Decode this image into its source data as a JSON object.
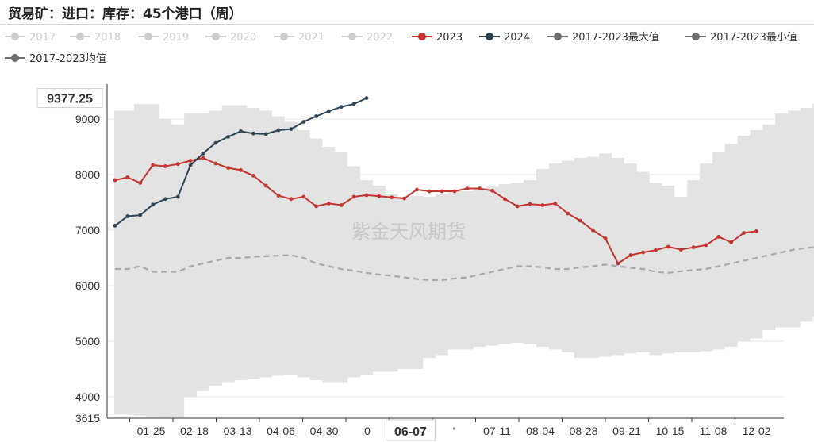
{
  "title": "贸易矿：进口：库存：45个港口（周）",
  "watermark": "紫金天风期货",
  "chart_data": {
    "type": "line",
    "title": "贸易矿：进口：库存：45个港口（周）",
    "xlabel": "",
    "ylabel": "",
    "ylim": [
      3615,
      9600
    ],
    "y_ticks": [
      3615,
      4000,
      5000,
      6000,
      7000,
      8000,
      9000
    ],
    "x_ticks": [
      "01-25",
      "02-18",
      "03-13",
      "04-06",
      "04-30",
      "0",
      "06-07",
      "'",
      "07-11",
      "08-04",
      "08-28",
      "09-21",
      "10-15",
      "11-08",
      "12-02"
    ],
    "axis_pointer": {
      "y_label": "9377.25",
      "x_label": "06-07"
    },
    "grid": "horizontal",
    "legend_position": "top",
    "legend": [
      {
        "name": "2017",
        "color": "#cccccc",
        "active": false
      },
      {
        "name": "2018",
        "color": "#cccccc",
        "active": false
      },
      {
        "name": "2019",
        "color": "#cccccc",
        "active": false
      },
      {
        "name": "2020",
        "color": "#cccccc",
        "active": false
      },
      {
        "name": "2021",
        "color": "#cccccc",
        "active": false
      },
      {
        "name": "2022",
        "color": "#cccccc",
        "active": false
      },
      {
        "name": "2023",
        "color": "#c23531",
        "active": true
      },
      {
        "name": "2024",
        "color": "#2f4554",
        "active": true
      },
      {
        "name": "2017-2023最大值",
        "color": "#6e7074",
        "active": true
      },
      {
        "name": "2017-2023最小值",
        "color": "#6e7074",
        "active": true
      },
      {
        "name": "2017-2023均值",
        "color": "#6e7074",
        "active": true
      }
    ],
    "band": {
      "max": [
        9150,
        9150,
        9270,
        9270,
        9000,
        8900,
        9100,
        9100,
        9150,
        9250,
        9250,
        9200,
        9150,
        9050,
        8950,
        8800,
        8650,
        8500,
        8400,
        8150,
        7900,
        7800,
        7650,
        7600,
        7620,
        7600,
        7650,
        7700,
        7700,
        7750,
        7780,
        7830,
        7850,
        7900,
        8100,
        8200,
        8250,
        8300,
        8320,
        8380,
        8300,
        8200,
        8050,
        7850,
        7800,
        7600,
        7900,
        8200,
        8400,
        8550,
        8700,
        8800,
        8900,
        9100,
        9150,
        9200,
        9280,
        9150,
        9220
      ],
      "min": [
        3680,
        3680,
        3660,
        3650,
        3640,
        3640,
        4000,
        4100,
        4200,
        4250,
        4300,
        4320,
        4350,
        4380,
        4400,
        4350,
        4300,
        4250,
        4250,
        4350,
        4400,
        4450,
        4450,
        4500,
        4500,
        4700,
        4750,
        4850,
        4850,
        4900,
        4920,
        4950,
        4970,
        4950,
        4900,
        4850,
        4800,
        4700,
        4700,
        4720,
        4750,
        4780,
        4800,
        4750,
        4780,
        4800,
        4800,
        4820,
        4850,
        4900,
        5000,
        5050,
        5200,
        5250,
        5250,
        5350,
        5450,
        5500,
        5550
      ],
      "avg": [
        6300,
        6300,
        6350,
        6250,
        6250,
        6250,
        6350,
        6400,
        6450,
        6500,
        6500,
        6520,
        6530,
        6540,
        6550,
        6500,
        6400,
        6350,
        6300,
        6270,
        6230,
        6200,
        6180,
        6150,
        6120,
        6100,
        6100,
        6130,
        6150,
        6200,
        6250,
        6300,
        6350,
        6350,
        6330,
        6300,
        6300,
        6330,
        6350,
        6380,
        6350,
        6320,
        6300,
        6250,
        6230,
        6260,
        6280,
        6300,
        6350,
        6400,
        6450,
        6500,
        6550,
        6600,
        6650,
        6680,
        6700,
        6720,
        6750
      ]
    },
    "series": [
      {
        "name": "2023",
        "color": "#c23531",
        "values": [
          7900,
          7950,
          7850,
          8170,
          8150,
          8190,
          8250,
          8300,
          8200,
          8120,
          8080,
          7980,
          7800,
          7620,
          7560,
          7600,
          7430,
          7480,
          7450,
          7600,
          7630,
          7610,
          7590,
          7570,
          7730,
          7700,
          7700,
          7700,
          7750,
          7750,
          7710,
          7560,
          7430,
          7470,
          7450,
          7480,
          7300,
          7170,
          7000,
          6850,
          6400,
          6550,
          6600,
          6640,
          6700,
          6650,
          6690,
          6730,
          6880,
          6780,
          6950,
          6980
        ]
      },
      {
        "name": "2024",
        "color": "#2f4554",
        "values": [
          7080,
          7250,
          7270,
          7460,
          7560,
          7600,
          8170,
          8380,
          8570,
          8680,
          8780,
          8740,
          8730,
          8800,
          8820,
          8950,
          9050,
          9140,
          9220,
          9270,
          9377.25
        ]
      }
    ]
  }
}
